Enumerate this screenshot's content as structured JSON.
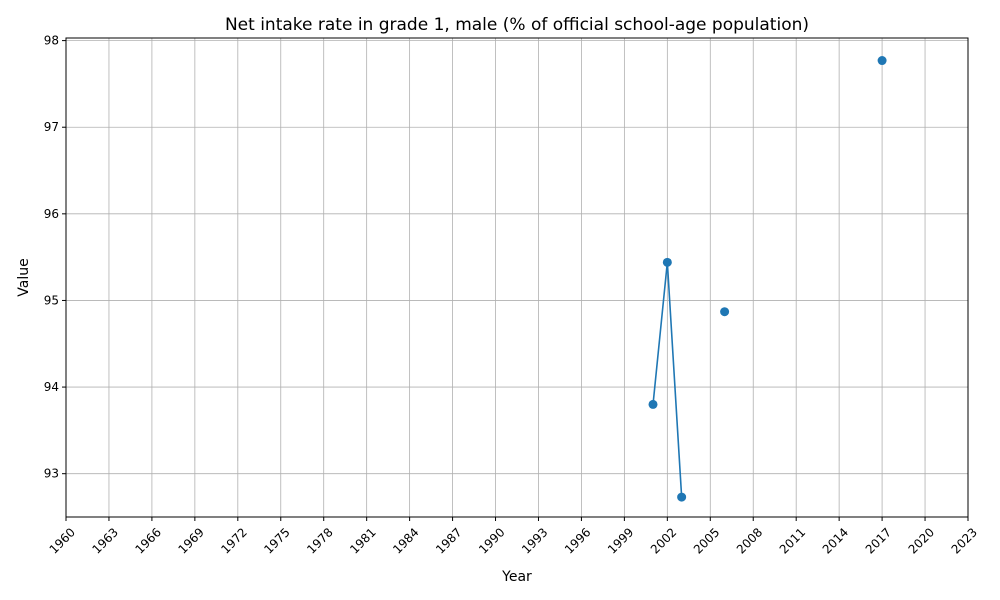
{
  "chart_data": {
    "type": "line",
    "title": "Net intake rate in grade 1, male (% of official school-age population)",
    "xlabel": "Year",
    "ylabel": "Value",
    "xlim": [
      1960,
      2023
    ],
    "ylim": [
      92.5,
      98.03
    ],
    "x_ticks": [
      1960,
      1963,
      1966,
      1969,
      1972,
      1975,
      1978,
      1981,
      1984,
      1987,
      1990,
      1993,
      1996,
      1999,
      2002,
      2005,
      2008,
      2011,
      2014,
      2017,
      2020,
      2023
    ],
    "y_ticks": [
      93,
      94,
      95,
      96,
      97,
      98
    ],
    "grid": true,
    "colors": {
      "series": "#1f77b4",
      "grid": "#b0b0b0",
      "axis": "#000000"
    },
    "series": [
      {
        "points": [
          {
            "x": 2001,
            "y": 93.8
          },
          {
            "x": 2002,
            "y": 95.44
          },
          {
            "x": 2003,
            "y": 92.73
          },
          {
            "x": 2006,
            "y": 94.87
          },
          {
            "x": 2017,
            "y": 97.77
          }
        ],
        "segments": [
          [
            0,
            1,
            2
          ]
        ]
      }
    ]
  }
}
